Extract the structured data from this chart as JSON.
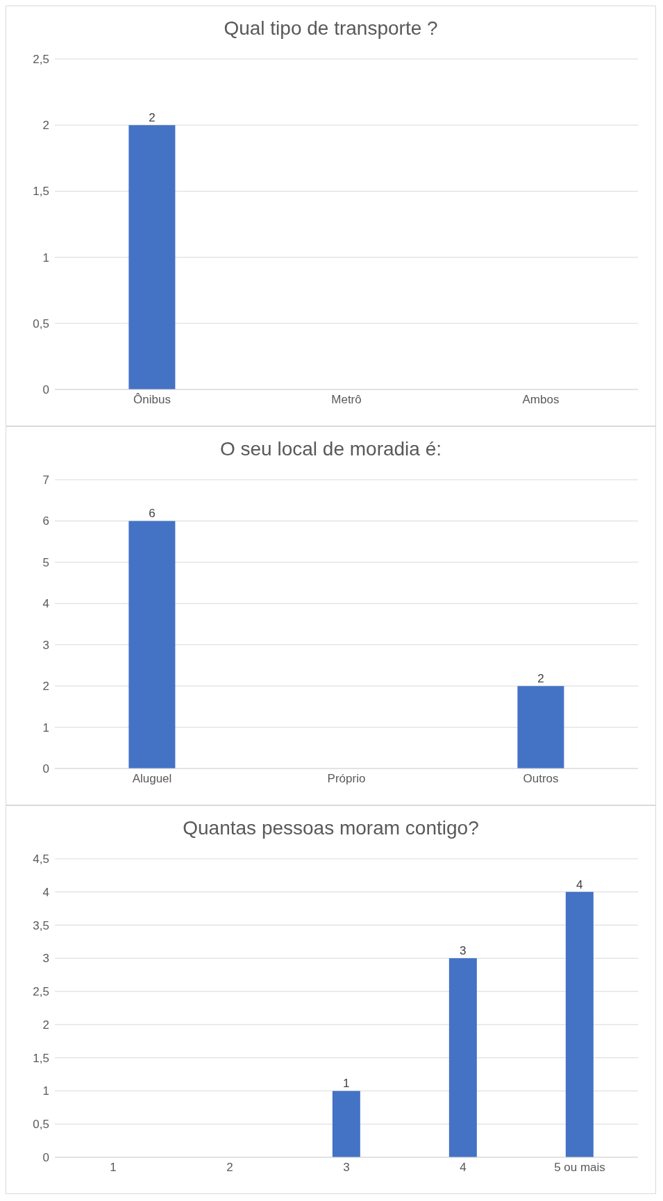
{
  "chart_data": [
    {
      "type": "bar",
      "title": "Qual tipo de transporte ?",
      "categories": [
        "Ônibus",
        "Metrô",
        "Ambos"
      ],
      "values": [
        2,
        0,
        0
      ],
      "color": "#4472c4",
      "value_labels": [
        "2",
        null,
        null
      ],
      "ylim": [
        0,
        2.5
      ],
      "yticks": [
        0,
        {
          "value": 0.5,
          "label": "0,5"
        },
        1,
        {
          "value": 1.5,
          "label": "1,5"
        },
        2,
        {
          "value": 2.5,
          "label": "2,5"
        }
      ],
      "grid": "y",
      "legend": false
    },
    {
      "type": "bar",
      "title": "O seu local de moradia é:",
      "categories": [
        "Aluguel",
        "Próprio",
        "Outros"
      ],
      "values": [
        6,
        0,
        2
      ],
      "color": "#4472c4",
      "value_labels": [
        "6",
        null,
        "2"
      ],
      "ylim": [
        0,
        7
      ],
      "yticks": [
        0,
        1,
        2,
        3,
        4,
        5,
        6,
        7
      ],
      "grid": "y",
      "legend": false
    },
    {
      "type": "bar",
      "title": "Quantas pessoas moram contigo?",
      "categories": [
        "1",
        "2",
        "3",
        "4",
        "5 ou mais"
      ],
      "values": [
        0,
        0,
        1,
        3,
        4
      ],
      "color": "#4472c4",
      "value_labels": [
        null,
        null,
        "1",
        "3",
        "4"
      ],
      "ylim": [
        0,
        4.5
      ],
      "yticks": [
        0,
        {
          "value": 0.5,
          "label": "0,5"
        },
        1,
        {
          "value": 1.5,
          "label": "1,5"
        },
        2,
        {
          "value": 2.5,
          "label": "2,5"
        },
        3,
        {
          "value": 3.5,
          "label": "3,5"
        },
        4,
        {
          "value": 4.5,
          "label": "4,5"
        }
      ],
      "grid": "y",
      "legend": false
    }
  ]
}
